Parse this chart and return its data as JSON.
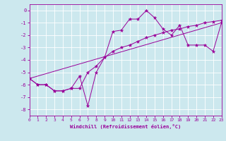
{
  "xlabel": "Windchill (Refroidissement éolien,°C)",
  "bg_color": "#cce8ee",
  "line_color": "#990099",
  "grid_color": "#ffffff",
  "xlim": [
    0,
    23
  ],
  "ylim": [
    -8.5,
    0.5
  ],
  "yticks": [
    0,
    -1,
    -2,
    -3,
    -4,
    -5,
    -6,
    -7,
    -8
  ],
  "xticks": [
    0,
    1,
    2,
    3,
    4,
    5,
    6,
    7,
    8,
    9,
    10,
    11,
    12,
    13,
    14,
    15,
    16,
    17,
    18,
    19,
    20,
    21,
    22,
    23
  ],
  "series1": [
    [
      0,
      -5.5
    ],
    [
      1,
      -6.0
    ],
    [
      2,
      -6.0
    ],
    [
      3,
      -6.5
    ],
    [
      4,
      -6.5
    ],
    [
      5,
      -6.3
    ],
    [
      6,
      -5.3
    ],
    [
      7,
      -7.7
    ],
    [
      8,
      -5.0
    ],
    [
      9,
      -3.8
    ],
    [
      10,
      -1.7
    ],
    [
      11,
      -1.6
    ],
    [
      12,
      -0.7
    ],
    [
      13,
      -0.7
    ],
    [
      14,
      0.0
    ],
    [
      15,
      -0.6
    ],
    [
      16,
      -1.5
    ],
    [
      17,
      -2.0
    ],
    [
      18,
      -1.2
    ],
    [
      19,
      -2.8
    ],
    [
      20,
      -2.8
    ],
    [
      21,
      -2.8
    ],
    [
      22,
      -3.3
    ],
    [
      23,
      -1.0
    ]
  ],
  "series2": [
    [
      0,
      -5.5
    ],
    [
      1,
      -6.0
    ],
    [
      2,
      -6.0
    ],
    [
      3,
      -6.5
    ],
    [
      4,
      -6.5
    ],
    [
      5,
      -6.3
    ],
    [
      6,
      -6.3
    ],
    [
      7,
      -5.0
    ],
    [
      8,
      -4.5
    ],
    [
      9,
      -3.8
    ],
    [
      10,
      -3.3
    ],
    [
      11,
      -3.0
    ],
    [
      12,
      -2.8
    ],
    [
      13,
      -2.5
    ],
    [
      14,
      -2.2
    ],
    [
      15,
      -2.0
    ],
    [
      16,
      -1.8
    ],
    [
      17,
      -1.6
    ],
    [
      18,
      -1.5
    ],
    [
      19,
      -1.3
    ],
    [
      20,
      -1.2
    ],
    [
      21,
      -1.0
    ],
    [
      22,
      -0.9
    ],
    [
      23,
      -0.8
    ]
  ],
  "series3_x": [
    0,
    23
  ],
  "series3_y": [
    -5.5,
    -1.0
  ]
}
